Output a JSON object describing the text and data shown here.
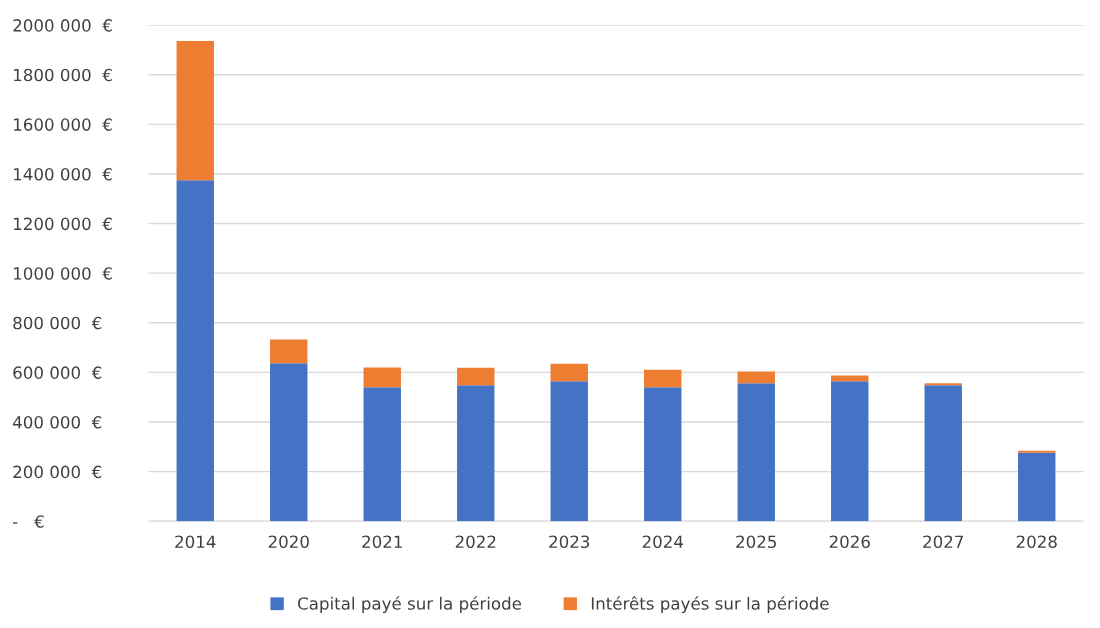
{
  "chart_data": {
    "type": "bar",
    "stacked": true,
    "categories": [
      "2014",
      "2020",
      "2021",
      "2022",
      "2023",
      "2024",
      "2025",
      "2026",
      "2027",
      "2028"
    ],
    "series": [
      {
        "name": "Capital payé sur la période",
        "color": "#4472c4",
        "values": [
          1375000,
          637000,
          540000,
          548000,
          564000,
          540000,
          556000,
          564000,
          548000,
          276000
        ]
      },
      {
        "name": "Intérêts payés sur la période",
        "color": "#ed7d31",
        "values": [
          561000,
          96000,
          80000,
          71000,
          71000,
          71000,
          48000,
          24000,
          8000,
          8000
        ]
      }
    ],
    "ylim": [
      0,
      2000000
    ],
    "yticks": [
      {
        "value": 0,
        "label": "-   €"
      },
      {
        "value": 200000,
        "label": "200 000  €"
      },
      {
        "value": 400000,
        "label": "400 000  €"
      },
      {
        "value": 600000,
        "label": "600 000  €"
      },
      {
        "value": 800000,
        "label": "800 000  €"
      },
      {
        "value": 1000000,
        "label": "1000 000  €"
      },
      {
        "value": 1200000,
        "label": "1200 000  €"
      },
      {
        "value": 1400000,
        "label": "1400 000  €"
      },
      {
        "value": 1600000,
        "label": "1600 000  €"
      },
      {
        "value": 1800000,
        "label": "1800 000  €"
      },
      {
        "value": 2000000,
        "label": "2000 000  €"
      }
    ],
    "grid": "y",
    "legend": "bottom"
  }
}
